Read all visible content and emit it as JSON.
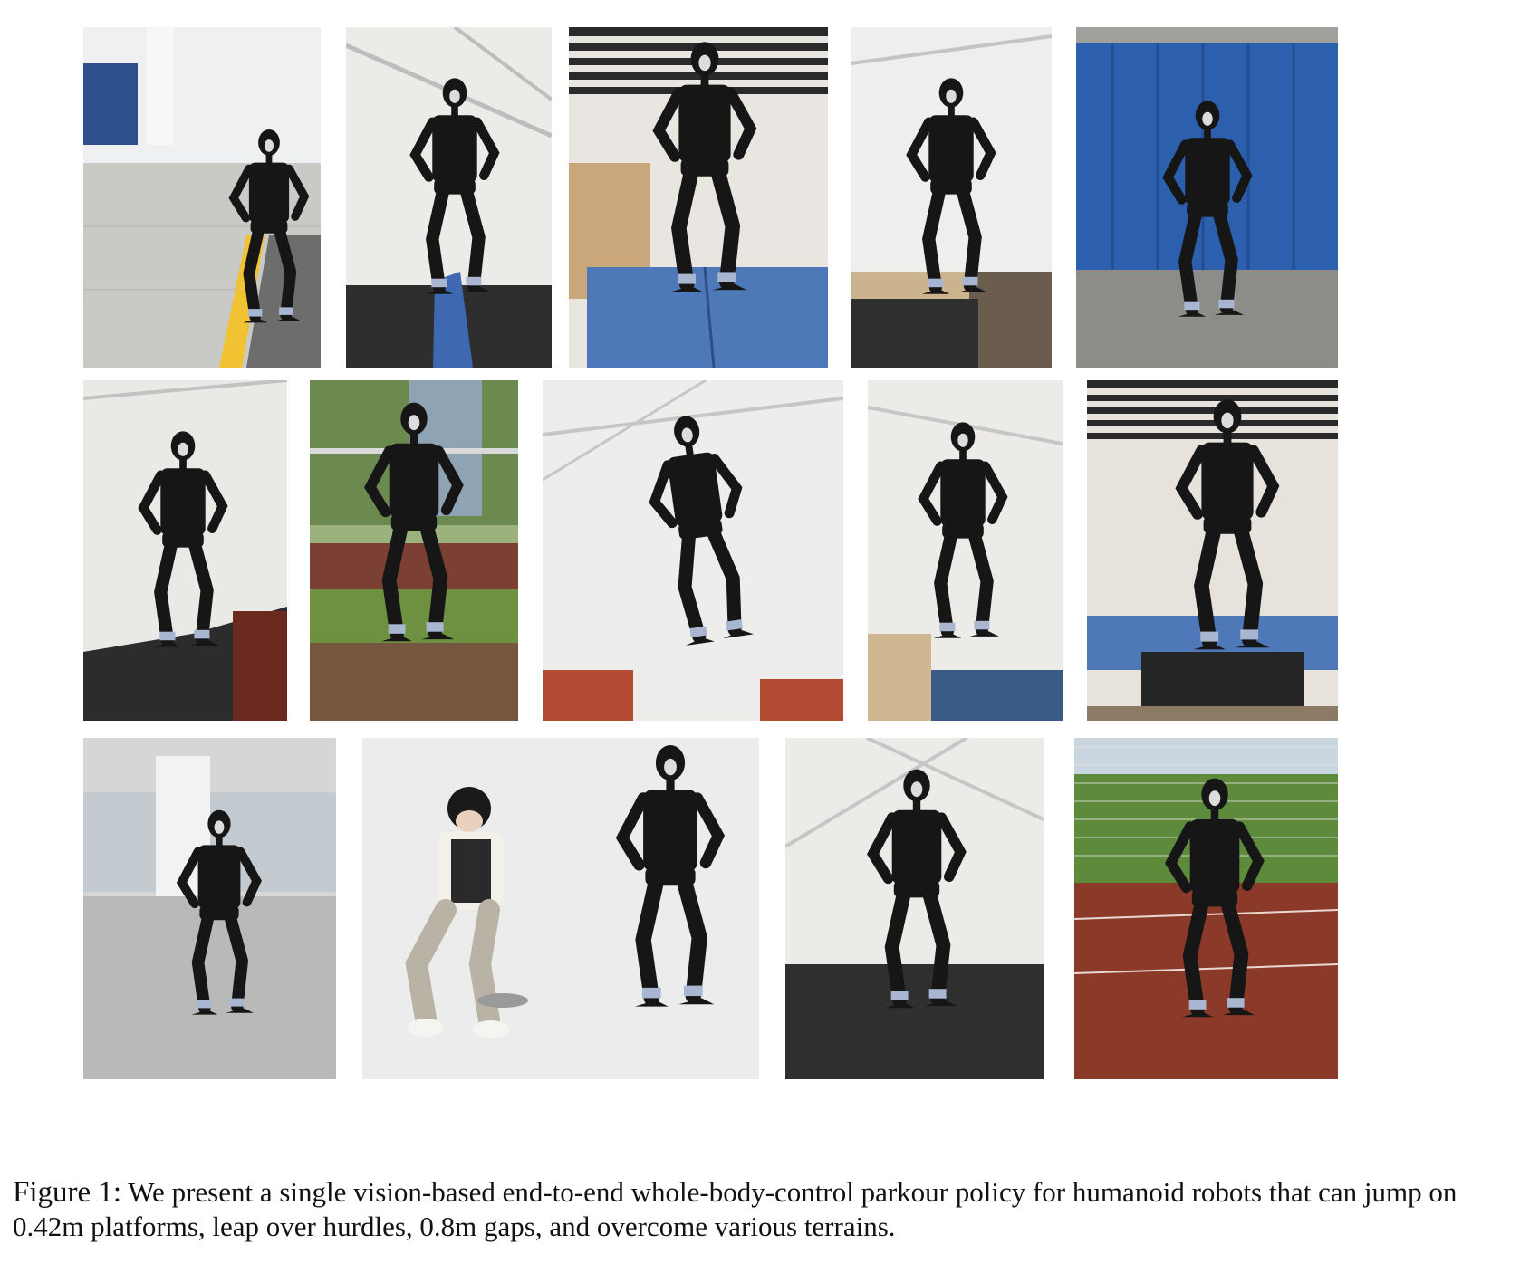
{
  "figure": {
    "label": "Figure 1:",
    "text": "We present a single vision-based end-to-end whole-body-control parkour policy for humanoid robots that can jump on 0.42m platforms, leap over hurdles, 0.8m gaps, and overcome various terrains."
  },
  "colors": {
    "robot": "#161616",
    "foot_band": "#a9b6d2",
    "blue_wall": "#2c5fae",
    "blue_box": "#4f78b8",
    "track": "#8b3a2a",
    "grass": "#5e8a3c"
  },
  "photos": [
    {
      "row": 1,
      "scene": "outdoor-pavement"
    },
    {
      "row": 1,
      "scene": "indoor-hurdle"
    },
    {
      "row": 1,
      "scene": "indoor-box-jump"
    },
    {
      "row": 1,
      "scene": "indoor-step"
    },
    {
      "row": 1,
      "scene": "blue-wall"
    },
    {
      "row": 2,
      "scene": "indoor-slope"
    },
    {
      "row": 2,
      "scene": "outdoor-bar"
    },
    {
      "row": 2,
      "scene": "indoor-gap-leap"
    },
    {
      "row": 2,
      "scene": "indoor-step-down"
    },
    {
      "row": 2,
      "scene": "indoor-box-climb"
    },
    {
      "row": 3,
      "scene": "office-hall"
    },
    {
      "row": 3,
      "scene": "teleop-studio"
    },
    {
      "row": 3,
      "scene": "indoor-stride"
    },
    {
      "row": 3,
      "scene": "sports-track"
    }
  ]
}
